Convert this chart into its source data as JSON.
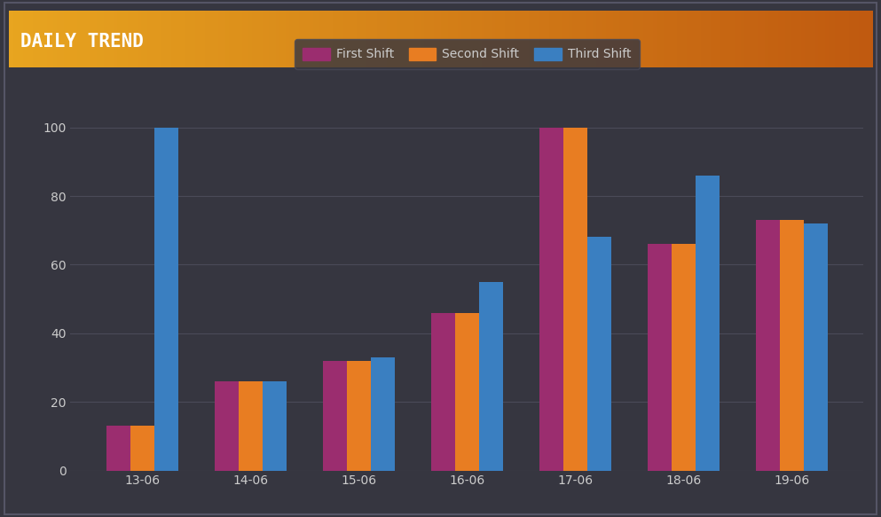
{
  "title": "DAILY TREND",
  "categories": [
    "13-06",
    "14-06",
    "15-06",
    "16-06",
    "17-06",
    "18-06",
    "19-06"
  ],
  "series": [
    {
      "label": "First Shift",
      "color": "#9B2D6F",
      "values": [
        13,
        26,
        32,
        46,
        100,
        66,
        73
      ]
    },
    {
      "label": "Second Shift",
      "color": "#E87D22",
      "values": [
        13,
        26,
        32,
        46,
        100,
        66,
        73
      ]
    },
    {
      "label": "Third Shift",
      "color": "#3A7FC1",
      "values": [
        100,
        26,
        33,
        55,
        68,
        86,
        72
      ]
    }
  ],
  "ylim": [
    0,
    110
  ],
  "yticks": [
    0,
    20,
    40,
    60,
    80,
    100
  ],
  "background_color": "#363640",
  "plot_bg_color": "#363640",
  "title_bg_color_left": "#E8A520",
  "title_bg_color_right": "#C05A10",
  "grid_color": "#4A4A58",
  "tick_color": "#CCCCCC",
  "title_color": "#FFFFFF",
  "title_fontsize": 15,
  "legend_fontsize": 10,
  "tick_fontsize": 10,
  "bar_width": 0.22,
  "legend_box_color": "#363640",
  "outer_border_color": "#555566"
}
